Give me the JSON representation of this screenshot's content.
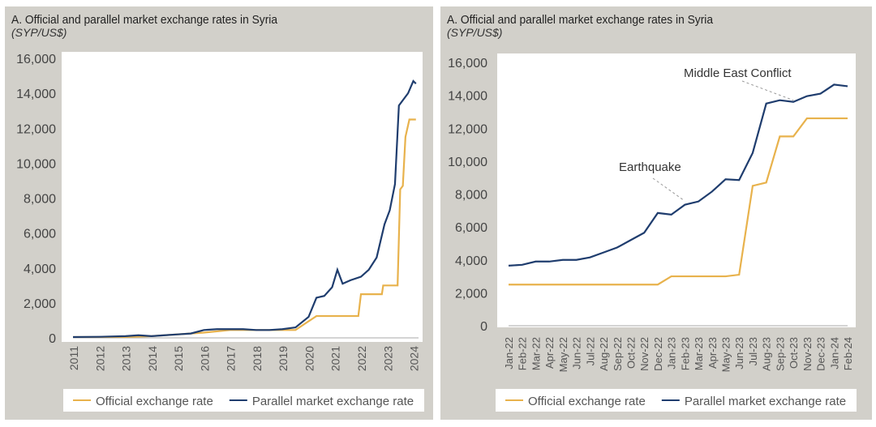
{
  "chart_data": [
    {
      "type": "line",
      "title": "A. Official and parallel market exchange rates in Syria",
      "subtitle": "(SYP/US$)",
      "ylim": [
        0,
        16000
      ],
      "yticks": [
        "0",
        "2,000",
        "4,000",
        "6,000",
        "8,000",
        "10,000",
        "12,000",
        "14,000",
        "16,000"
      ],
      "xlim": [
        2011,
        2024.2
      ],
      "xticks": [
        "2011",
        "2012",
        "2013",
        "2014",
        "2015",
        "2016",
        "2017",
        "2018",
        "2019",
        "2020",
        "2021",
        "2022",
        "2023",
        "2024"
      ],
      "legend": "bottom",
      "series": [
        {
          "name": "Official exchange rate",
          "color": "#e8b24c",
          "x": [
            2011,
            2013,
            2014,
            2016,
            2017,
            2019.5,
            2020.3,
            2021.9,
            2022,
            2022.8,
            2022.85,
            2023.4,
            2023.5,
            2023.6,
            2023.7,
            2023.85,
            2024.1
          ],
          "y": [
            50,
            50,
            100,
            300,
            450,
            450,
            1250,
            1250,
            2500,
            2500,
            3000,
            3000,
            8500,
            8700,
            11500,
            12500,
            12500
          ]
        },
        {
          "name": "Parallel market exchange rate",
          "color": "#1f3d6e",
          "x": [
            2011,
            2012,
            2013,
            2013.5,
            2014,
            2014.5,
            2015,
            2015.5,
            2016,
            2016.5,
            2017,
            2017.5,
            2018,
            2018.5,
            2019,
            2019.5,
            2020,
            2020.3,
            2020.6,
            2020.9,
            2021.1,
            2021.3,
            2021.6,
            2022,
            2022.3,
            2022.6,
            2022.9,
            2023.1,
            2023.3,
            2023.45,
            2023.6,
            2023.8,
            2024,
            2024.1
          ],
          "y": [
            50,
            60,
            100,
            150,
            100,
            150,
            200,
            250,
            450,
            500,
            500,
            500,
            450,
            450,
            500,
            600,
            1200,
            2300,
            2400,
            2900,
            3900,
            3100,
            3300,
            3500,
            3900,
            4600,
            6500,
            7300,
            8800,
            13300,
            13600,
            14000,
            14700,
            14550
          ]
        }
      ]
    },
    {
      "type": "line",
      "title": "A. Official and parallel market exchange rates in Syria",
      "subtitle": "(SYP/US$)",
      "ylim": [
        0,
        16000
      ],
      "yticks": [
        "0",
        "2,000",
        "4,000",
        "6,000",
        "8,000",
        "10,000",
        "12,000",
        "14,000",
        "16,000"
      ],
      "categories": [
        "Jan-22",
        "Feb-22",
        "Mar-22",
        "Apr-22",
        "May-22",
        "Jun-22",
        "Jul-22",
        "Aug-22",
        "Sep-22",
        "Oct-22",
        "Nov-22",
        "Dec-22",
        "Jan-23",
        "Feb-23",
        "Mar-23",
        "Apr-23",
        "May-23",
        "Jun-23",
        "Jul-23",
        "Aug-23",
        "Sep-23",
        "Oct-23",
        "Nov-23",
        "Dec-23",
        "Jan-24",
        "Feb-24"
      ],
      "legend": "bottom",
      "annotations": [
        {
          "text": "Middle East Conflict",
          "category": "Oct-23"
        },
        {
          "text": "Earthquake",
          "category": "Feb-23"
        }
      ],
      "series": [
        {
          "name": "Official exchange rate",
          "color": "#e8b24c",
          "values": [
            2500,
            2500,
            2500,
            2500,
            2500,
            2500,
            2500,
            2500,
            2500,
            2500,
            2500,
            2500,
            3000,
            3000,
            3000,
            3000,
            3000,
            3100,
            8500,
            8700,
            11500,
            11500,
            12600,
            12600,
            12600,
            12600
          ]
        },
        {
          "name": "Parallel market exchange rate",
          "color": "#1f3d6e",
          "values": [
            3650,
            3700,
            3900,
            3900,
            4000,
            4000,
            4150,
            4450,
            4750,
            5200,
            5650,
            6850,
            6750,
            7350,
            7550,
            8150,
            8900,
            8850,
            10500,
            13500,
            13700,
            13600,
            13950,
            14100,
            14650,
            14550
          ]
        }
      ]
    }
  ]
}
